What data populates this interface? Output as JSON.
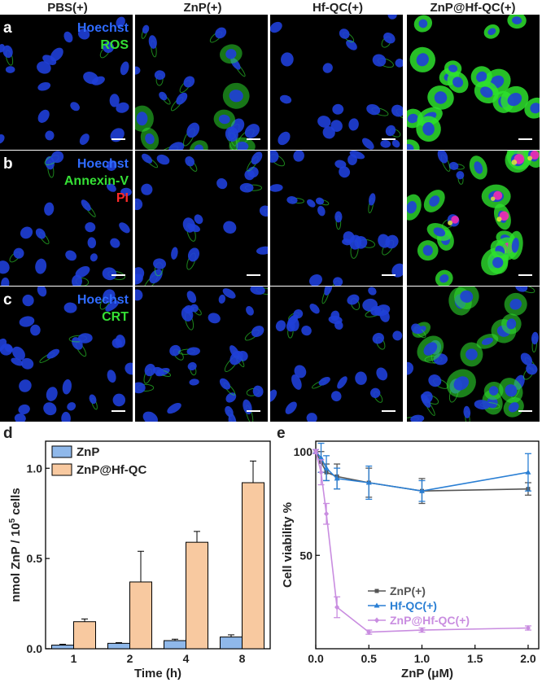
{
  "columns": [
    "PBS(+)",
    "ZnP(+)",
    "Hf-QC(+)",
    "ZnP@Hf-QC(+)"
  ],
  "rows": [
    {
      "letter": "a",
      "stains": [
        {
          "name": "Hoechst",
          "color": "#2f6bff"
        },
        {
          "name": "ROS",
          "color": "#35e035"
        }
      ]
    },
    {
      "letter": "b",
      "stains": [
        {
          "name": "Hoechst",
          "color": "#2f6bff"
        },
        {
          "name": "Annexin-V",
          "color": "#35e035"
        },
        {
          "name": "PI",
          "color": "#ff2a2a"
        }
      ]
    },
    {
      "letter": "c",
      "stains": [
        {
          "name": "Hoechst",
          "color": "#2f6bff"
        },
        {
          "name": "CRT",
          "color": "#35e035"
        }
      ]
    }
  ],
  "chart_data": [
    {
      "letter": "d",
      "type": "bar",
      "categories": [
        "1",
        "2",
        "4",
        "8"
      ],
      "series": [
        {
          "name": "ZnP",
          "values": [
            0.02,
            0.03,
            0.045,
            0.065
          ],
          "errors": [
            0.005,
            0.004,
            0.008,
            0.012
          ],
          "color": "#8fb8ea"
        },
        {
          "name": "ZnP@Hf-QC",
          "values": [
            0.15,
            0.37,
            0.59,
            0.92
          ],
          "errors": [
            0.015,
            0.17,
            0.06,
            0.12
          ],
          "color": "#f8c9a0"
        }
      ],
      "xlabel": "Time (h)",
      "ylabel_main": "nmol ZnP / 10",
      "ylabel_sup": "5",
      "ylabel_end": " cells",
      "ylim": [
        0,
        1.15
      ],
      "yticks": [
        "0.0",
        "0.5",
        "1.0"
      ],
      "legend": "top-left"
    },
    {
      "letter": "e",
      "type": "line",
      "x": [
        0.0,
        0.05,
        0.1,
        0.2,
        0.5,
        1.0,
        2.0
      ],
      "series": [
        {
          "name": "ZnP(+)",
          "values": [
            100,
            95,
            90,
            88,
            85,
            81,
            82
          ],
          "errors": [
            1,
            5,
            4,
            6,
            7,
            6,
            3
          ],
          "color": "#555555"
        },
        {
          "name": "Hf-QC(+)",
          "values": [
            100,
            97,
            92,
            87,
            85,
            81,
            90
          ],
          "errors": [
            1,
            7,
            6,
            5,
            8,
            5,
            9
          ],
          "color": "#2a7fd4"
        },
        {
          "name": "ZnP@Hf-QC(+)",
          "values": [
            100,
            90,
            70,
            25,
            13,
            14,
            15
          ],
          "errors": [
            1,
            6,
            5,
            5,
            1,
            1,
            1
          ],
          "color": "#c98de0"
        }
      ],
      "xlabel": "ZnP (μM)",
      "ylabel": "Cell viability %",
      "xlim": [
        0,
        2.1
      ],
      "ylim": [
        5,
        105
      ],
      "xticks": [
        "0.0",
        "0.5",
        "1.0",
        "1.5",
        "2.0"
      ],
      "yticks": [
        "50",
        "100"
      ],
      "legend": "bottom-right"
    }
  ]
}
